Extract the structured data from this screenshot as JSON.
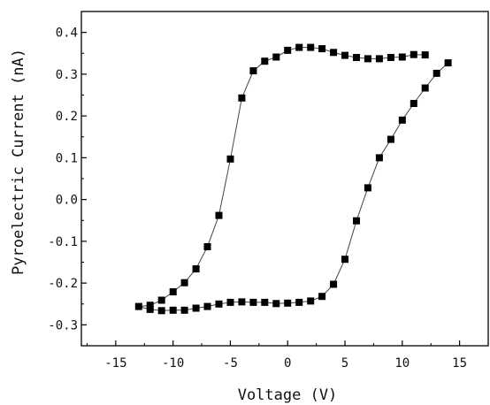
{
  "chart_data": {
    "type": "line",
    "title": "",
    "xlabel": "Voltage (V)",
    "ylabel": "Pyroelectric Current (nA)",
    "xlim": [
      -18,
      17.5
    ],
    "ylim": [
      -0.35,
      0.45
    ],
    "xticks": [
      -15,
      -10,
      -5,
      0,
      5,
      10,
      15
    ],
    "xtick_labels": [
      "-15",
      "-10",
      "-5",
      "0",
      "5",
      "10",
      "15"
    ],
    "yticks": [
      -0.3,
      -0.2,
      -0.1,
      0.0,
      0.1,
      0.2,
      0.3,
      0.4
    ],
    "ytick_labels": [
      "-0.3",
      "-0.2",
      "-0.1",
      "0.0",
      "0.1",
      "0.2",
      "0.3",
      "0.4"
    ],
    "grid": false,
    "marker": "square",
    "color": "#000000",
    "series": [
      {
        "x": [
          14.0,
          13.0,
          12.0,
          11.0,
          10.0,
          9.0,
          8.0,
          7.0,
          6.0,
          5.0,
          4.0,
          3.0,
          2.0,
          1.0,
          0.0,
          -1.0,
          -2.0,
          -3.0,
          -4.0,
          -5.0,
          -6.0,
          -7.0,
          -8.0,
          -9.0,
          -10.0,
          -11.0,
          -12.0,
          -13.0,
          -12.0,
          -11.0,
          -10.0,
          -9.0,
          -8.0,
          -7.0,
          -6.0,
          -5.0,
          -4.0,
          -3.0,
          -2.0,
          -1.0,
          0.0,
          1.0,
          2.0,
          3.0,
          4.0,
          5.0,
          6.0,
          7.0,
          8.0,
          9.0,
          10.0,
          11.0,
          12.0
        ],
        "y": [
          0.327,
          0.302,
          0.267,
          0.23,
          0.19,
          0.144,
          0.1,
          0.028,
          -0.051,
          -0.143,
          -0.203,
          -0.232,
          -0.243,
          -0.246,
          -0.248,
          -0.249,
          -0.246,
          -0.246,
          -0.245,
          -0.246,
          -0.25,
          -0.256,
          -0.26,
          -0.265,
          -0.265,
          -0.266,
          -0.263,
          -0.256,
          -0.253,
          -0.241,
          -0.221,
          -0.199,
          -0.166,
          -0.113,
          -0.038,
          0.097,
          0.243,
          0.308,
          0.331,
          0.341,
          0.357,
          0.364,
          0.364,
          0.361,
          0.352,
          0.345,
          0.34,
          0.337,
          0.337,
          0.34,
          0.341,
          0.347,
          0.346
        ]
      }
    ]
  }
}
